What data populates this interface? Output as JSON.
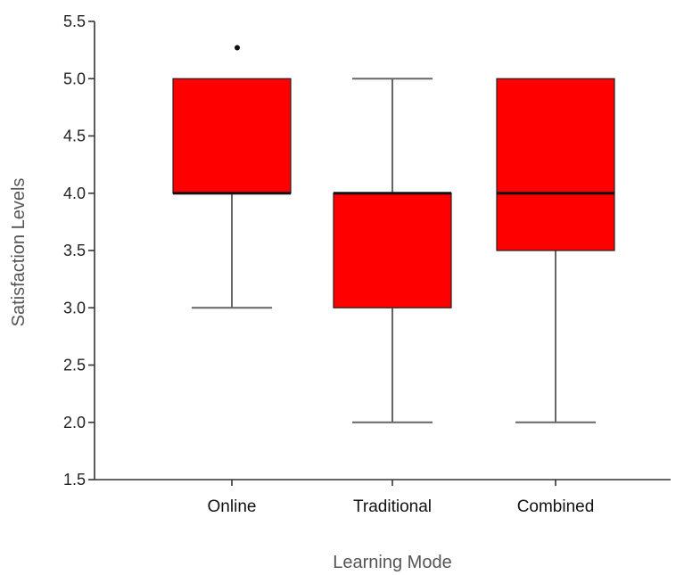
{
  "chart_data": {
    "type": "box",
    "xlabel": "Learning Mode",
    "ylabel": "Satisfaction Levels",
    "ylim": [
      1.5,
      5.5
    ],
    "yticks": [
      "1.5",
      "2.0",
      "2.5",
      "3.0",
      "3.5",
      "4.0",
      "4.5",
      "5.0",
      "5.5"
    ],
    "box_color": "#ff0000",
    "categories": [
      "Online",
      "Traditional",
      "Combined"
    ],
    "boxes": [
      {
        "category": "Online",
        "min": 3.0,
        "q1": 4.0,
        "median": 4.0,
        "q3": 5.0,
        "max": 5.0,
        "outliers": [
          5.27
        ]
      },
      {
        "category": "Traditional",
        "min": 2.0,
        "q1": 3.0,
        "median": 4.0,
        "q3": 4.0,
        "max": 5.0,
        "outliers": []
      },
      {
        "category": "Combined",
        "min": 2.0,
        "q1": 3.5,
        "median": 4.0,
        "q3": 5.0,
        "max": 5.0,
        "outliers": []
      }
    ]
  }
}
